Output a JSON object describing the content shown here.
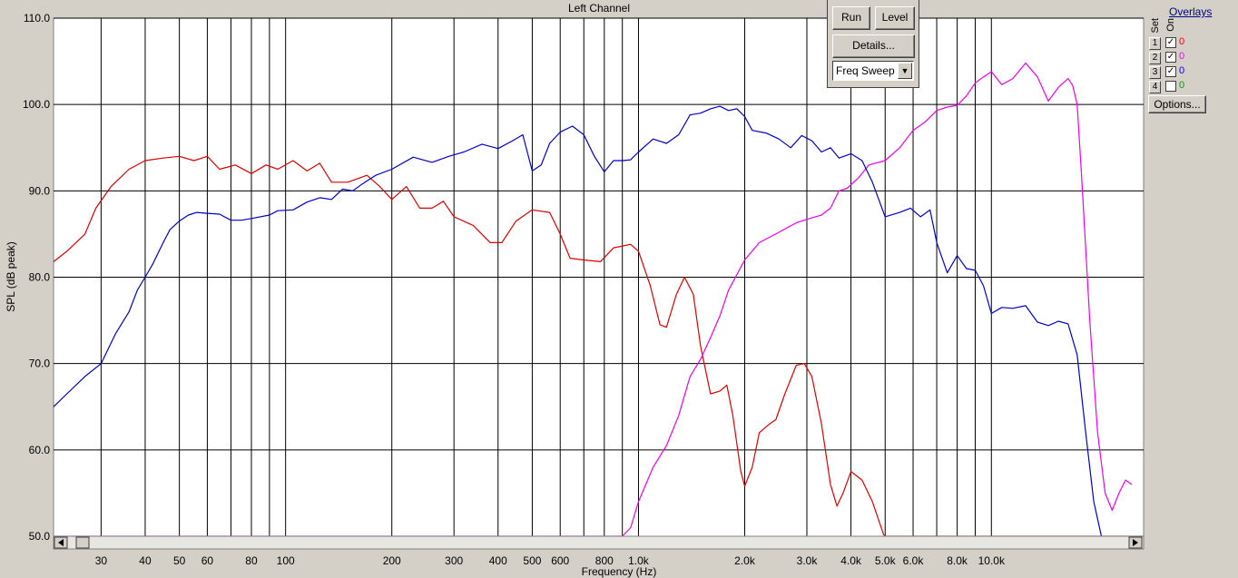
{
  "window": {
    "title": "Left Channel"
  },
  "controls": {
    "run_label": "Run",
    "level_label": "Level",
    "details_label": "Details...",
    "mode_value": "Freq Sweep"
  },
  "overlays": {
    "title": "Overlays",
    "set_label": "Set",
    "on_label": "On",
    "options_label": "Options...",
    "rows": [
      {
        "num": "1",
        "checked": true,
        "value": "0",
        "color": "#ff0000"
      },
      {
        "num": "2",
        "checked": true,
        "value": "0",
        "color": "#ff00ff"
      },
      {
        "num": "3",
        "checked": true,
        "value": "0",
        "color": "#0000ff"
      },
      {
        "num": "4",
        "checked": false,
        "value": "0",
        "color": "#00a000"
      }
    ]
  },
  "chart_data": {
    "type": "line",
    "title": "Left Channel",
    "xlabel": "Frequency (Hz)",
    "ylabel": "SPL (dB peak)",
    "xscale": "log",
    "xlim": [
      22,
      27000
    ],
    "ylim": [
      50,
      110
    ],
    "grid": true,
    "yticks": [
      {
        "v": 50,
        "label": "50.0"
      },
      {
        "v": 60,
        "label": "60.0"
      },
      {
        "v": 70,
        "label": "70.0"
      },
      {
        "v": 80,
        "label": "80.0"
      },
      {
        "v": 90,
        "label": "90.0"
      },
      {
        "v": 100,
        "label": "100.0"
      },
      {
        "v": 110,
        "label": "110.0"
      }
    ],
    "xticks": [
      {
        "v": 30,
        "label": "30"
      },
      {
        "v": 40,
        "label": "40"
      },
      {
        "v": 50,
        "label": "50"
      },
      {
        "v": 60,
        "label": "60"
      },
      {
        "v": 80,
        "label": "80"
      },
      {
        "v": 100,
        "label": "100"
      },
      {
        "v": 200,
        "label": "200"
      },
      {
        "v": 300,
        "label": "300"
      },
      {
        "v": 400,
        "label": "400"
      },
      {
        "v": 500,
        "label": "500"
      },
      {
        "v": 600,
        "label": "600"
      },
      {
        "v": 800,
        "label": "800"
      },
      {
        "v": 1000,
        "label": "1.0k"
      },
      {
        "v": 2000,
        "label": "2.0k"
      },
      {
        "v": 3000,
        "label": "3.0k"
      },
      {
        "v": 4000,
        "label": "4.0k"
      },
      {
        "v": 5000,
        "label": "5.0k"
      },
      {
        "v": 6000,
        "label": "6.0k"
      },
      {
        "v": 8000,
        "label": "8.0k"
      },
      {
        "v": 10000,
        "label": "10.0k"
      }
    ],
    "vgrid": [
      30,
      40,
      50,
      60,
      70,
      80,
      90,
      100,
      200,
      300,
      400,
      500,
      600,
      700,
      800,
      900,
      1000,
      2000,
      3000,
      4000,
      5000,
      6000,
      7000,
      8000,
      9000,
      10000
    ],
    "series": [
      {
        "color": "#dd0000",
        "points": [
          [
            22,
            81.8
          ],
          [
            24,
            83
          ],
          [
            27,
            85
          ],
          [
            29,
            88
          ],
          [
            32,
            90.5
          ],
          [
            36,
            92.5
          ],
          [
            40,
            93.5
          ],
          [
            45,
            93.8
          ],
          [
            50,
            94
          ],
          [
            55,
            93.5
          ],
          [
            60,
            94
          ],
          [
            65,
            92.5
          ],
          [
            72,
            93
          ],
          [
            80,
            92
          ],
          [
            88,
            93
          ],
          [
            95,
            92.5
          ],
          [
            105,
            93.5
          ],
          [
            115,
            92.3
          ],
          [
            125,
            93.2
          ],
          [
            135,
            91
          ],
          [
            150,
            91
          ],
          [
            170,
            91.8
          ],
          [
            185,
            90.5
          ],
          [
            200,
            89
          ],
          [
            220,
            90.5
          ],
          [
            240,
            88
          ],
          [
            260,
            88
          ],
          [
            280,
            88.8
          ],
          [
            300,
            87
          ],
          [
            340,
            86
          ],
          [
            380,
            84
          ],
          [
            410,
            84
          ],
          [
            450,
            86.5
          ],
          [
            500,
            87.8
          ],
          [
            560,
            87.5
          ],
          [
            600,
            85
          ],
          [
            640,
            82.2
          ],
          [
            700,
            82
          ],
          [
            780,
            81.8
          ],
          [
            850,
            83.4
          ],
          [
            950,
            83.8
          ],
          [
            1000,
            83
          ],
          [
            1080,
            79
          ],
          [
            1150,
            74.5
          ],
          [
            1200,
            74.2
          ],
          [
            1280,
            78
          ],
          [
            1350,
            80
          ],
          [
            1430,
            78
          ],
          [
            1500,
            72
          ],
          [
            1600,
            66.5
          ],
          [
            1700,
            66.8
          ],
          [
            1780,
            67.5
          ],
          [
            1850,
            64
          ],
          [
            1950,
            57.5
          ],
          [
            2000,
            55.8
          ],
          [
            2100,
            58
          ],
          [
            2200,
            62
          ],
          [
            2350,
            63
          ],
          [
            2450,
            63.5
          ],
          [
            2600,
            66.5
          ],
          [
            2800,
            69.8
          ],
          [
            2950,
            70
          ],
          [
            3100,
            68.5
          ],
          [
            3300,
            63
          ],
          [
            3500,
            56
          ],
          [
            3650,
            53.5
          ],
          [
            3800,
            55
          ],
          [
            4000,
            57.5
          ],
          [
            4300,
            56.5
          ],
          [
            4600,
            54
          ],
          [
            4950,
            50.2
          ],
          [
            5000,
            50
          ],
          [
            27000,
            50
          ]
        ]
      },
      {
        "color": "#ee00ee",
        "points": [
          [
            22,
            50
          ],
          [
            900,
            50
          ],
          [
            950,
            51
          ],
          [
            1000,
            54
          ],
          [
            1100,
            58
          ],
          [
            1200,
            60.5
          ],
          [
            1300,
            64
          ],
          [
            1400,
            68.5
          ],
          [
            1500,
            70.5
          ],
          [
            1600,
            73
          ],
          [
            1700,
            75.5
          ],
          [
            1800,
            78.5
          ],
          [
            2000,
            82
          ],
          [
            2200,
            84
          ],
          [
            2500,
            85.2
          ],
          [
            2800,
            86.3
          ],
          [
            3000,
            86.7
          ],
          [
            3300,
            87.2
          ],
          [
            3500,
            88
          ],
          [
            3700,
            90
          ],
          [
            3900,
            90.3
          ],
          [
            4200,
            91.5
          ],
          [
            4500,
            93
          ],
          [
            5000,
            93.5
          ],
          [
            5500,
            95
          ],
          [
            6000,
            97
          ],
          [
            6500,
            98
          ],
          [
            7000,
            99.3
          ],
          [
            7500,
            99.7
          ],
          [
            8000,
            99.9
          ],
          [
            8500,
            101
          ],
          [
            9000,
            102.5
          ],
          [
            9500,
            103.2
          ],
          [
            10000,
            103.8
          ],
          [
            10700,
            102.3
          ],
          [
            11500,
            103
          ],
          [
            12500,
            104.8
          ],
          [
            13500,
            103.2
          ],
          [
            14500,
            100.4
          ],
          [
            15500,
            102
          ],
          [
            16500,
            103
          ],
          [
            17000,
            102.2
          ],
          [
            17500,
            100
          ],
          [
            18000,
            92
          ],
          [
            19000,
            75
          ],
          [
            20000,
            62
          ],
          [
            21000,
            55
          ],
          [
            22000,
            53
          ],
          [
            23000,
            55
          ],
          [
            24000,
            56.5
          ],
          [
            25000,
            56
          ]
        ]
      },
      {
        "color": "#0000cc",
        "points": [
          [
            22,
            65
          ],
          [
            24,
            66.5
          ],
          [
            27,
            68.5
          ],
          [
            30,
            70
          ],
          [
            33,
            73.5
          ],
          [
            36,
            76
          ],
          [
            38,
            78.5
          ],
          [
            40,
            80
          ],
          [
            42,
            81.5
          ],
          [
            45,
            84
          ],
          [
            47,
            85.5
          ],
          [
            50,
            86.5
          ],
          [
            53,
            87.2
          ],
          [
            56,
            87.5
          ],
          [
            60,
            87.4
          ],
          [
            65,
            87.3
          ],
          [
            70,
            86.6
          ],
          [
            75,
            86.6
          ],
          [
            80,
            86.8
          ],
          [
            90,
            87.2
          ],
          [
            95,
            87.7
          ],
          [
            105,
            87.8
          ],
          [
            115,
            88.7
          ],
          [
            125,
            89.2
          ],
          [
            135,
            89
          ],
          [
            145,
            90.2
          ],
          [
            155,
            90
          ],
          [
            165,
            90.8
          ],
          [
            180,
            91.8
          ],
          [
            200,
            92.5
          ],
          [
            230,
            93.9
          ],
          [
            260,
            93.3
          ],
          [
            290,
            94
          ],
          [
            320,
            94.5
          ],
          [
            360,
            95.4
          ],
          [
            400,
            94.9
          ],
          [
            440,
            95.8
          ],
          [
            470,
            96.5
          ],
          [
            500,
            92.3
          ],
          [
            530,
            93
          ],
          [
            560,
            95.5
          ],
          [
            600,
            96.8
          ],
          [
            650,
            97.5
          ],
          [
            700,
            96.5
          ],
          [
            750,
            94
          ],
          [
            800,
            92.2
          ],
          [
            850,
            93.5
          ],
          [
            900,
            93.5
          ],
          [
            950,
            93.6
          ],
          [
            1000,
            94.5
          ],
          [
            1100,
            96
          ],
          [
            1200,
            95.5
          ],
          [
            1300,
            96.5
          ],
          [
            1400,
            98.8
          ],
          [
            1500,
            99
          ],
          [
            1600,
            99.5
          ],
          [
            1700,
            99.8
          ],
          [
            1800,
            99.3
          ],
          [
            1900,
            99.5
          ],
          [
            2000,
            98.6
          ],
          [
            2100,
            97
          ],
          [
            2300,
            96.7
          ],
          [
            2500,
            96
          ],
          [
            2700,
            95
          ],
          [
            2900,
            96.4
          ],
          [
            3100,
            95.8
          ],
          [
            3300,
            94.5
          ],
          [
            3500,
            95
          ],
          [
            3700,
            93.8
          ],
          [
            4000,
            94.3
          ],
          [
            4300,
            93.5
          ],
          [
            4600,
            91
          ],
          [
            5000,
            87
          ],
          [
            5500,
            87.5
          ],
          [
            5900,
            88
          ],
          [
            6300,
            87
          ],
          [
            6700,
            87.8
          ],
          [
            7000,
            84
          ],
          [
            7500,
            80.5
          ],
          [
            8000,
            82.5
          ],
          [
            8500,
            81
          ],
          [
            9000,
            80.8
          ],
          [
            9500,
            79
          ],
          [
            10000,
            75.8
          ],
          [
            10700,
            76.5
          ],
          [
            11500,
            76.4
          ],
          [
            12500,
            76.7
          ],
          [
            13500,
            74.8
          ],
          [
            14500,
            74.4
          ],
          [
            15500,
            74.9
          ],
          [
            16500,
            74.6
          ],
          [
            17500,
            71
          ],
          [
            18500,
            62
          ],
          [
            19500,
            54
          ],
          [
            20500,
            50
          ]
        ]
      }
    ]
  }
}
